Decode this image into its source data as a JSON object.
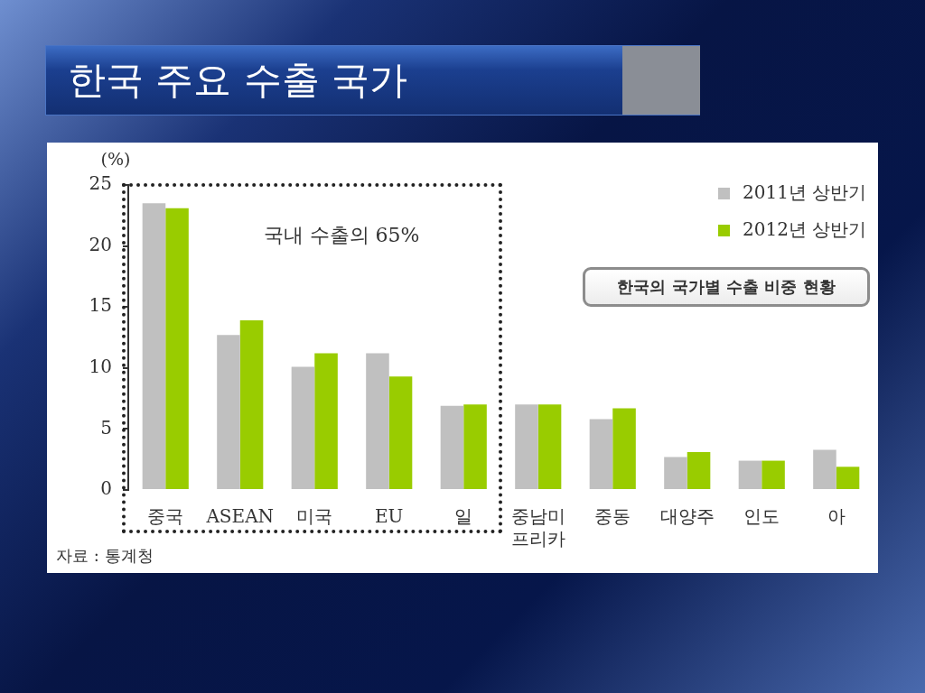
{
  "chart_data": {
    "type": "bar",
    "title": "한국 주요 수출 국가",
    "subtitle": "한국의 국가별 수출 비중 현황",
    "ylabel": "(%)",
    "categories": [
      "중국",
      "ASEAN",
      "미국",
      "EU",
      "일",
      "중남미\n프리카",
      "중동",
      "대양주",
      "인도",
      "아"
    ],
    "series": [
      {
        "name": "2011년 상반기",
        "color": "#c0c0c0",
        "values": [
          23.5,
          12.7,
          10.1,
          11.2,
          6.9,
          7.0,
          5.8,
          2.7,
          2.4,
          3.3
        ]
      },
      {
        "name": "2012년 상반기",
        "color": "#99cc00",
        "values": [
          23.1,
          13.9,
          11.2,
          9.3,
          7.0,
          7.0,
          6.7,
          3.1,
          2.4,
          1.9
        ]
      }
    ],
    "ylim": [
      0,
      25
    ],
    "yticks": [
      0,
      5,
      10,
      15,
      20,
      25
    ],
    "grid": false,
    "legend": "top right",
    "annotations": [
      "국내 수출의 65%",
      "자료 : 통계청"
    ]
  }
}
